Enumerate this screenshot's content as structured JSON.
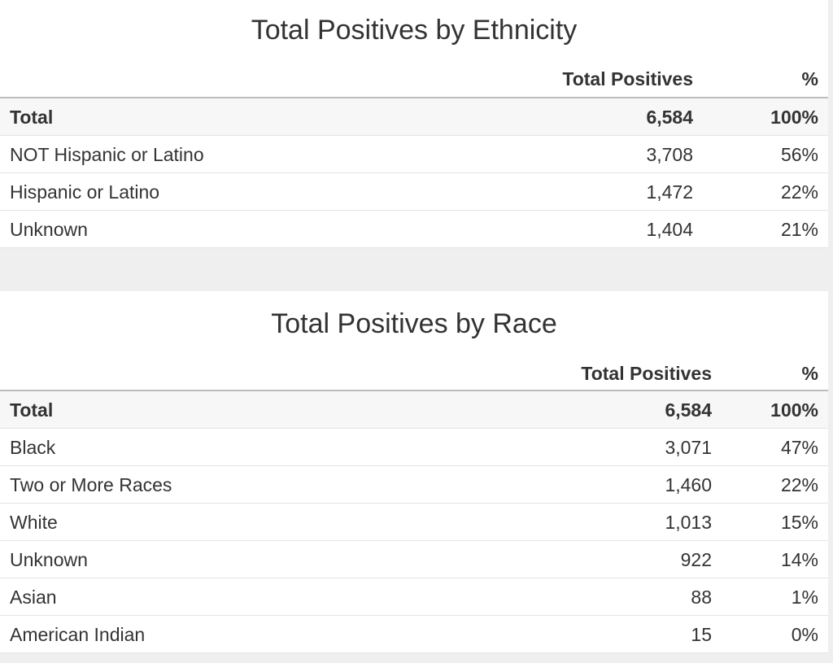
{
  "tables": [
    {
      "title": "Total Positives by Ethnicity",
      "header": [
        "Total Positives",
        "%"
      ],
      "rows": [
        [
          "Total",
          "6,584",
          "100%"
        ],
        [
          "NOT Hispanic or Latino",
          "3,708",
          "56%"
        ],
        [
          "Hispanic or Latino",
          "1,472",
          "22%"
        ],
        [
          "Unknown",
          "1,404",
          "21%"
        ]
      ]
    },
    {
      "title": "Total Positives by Race",
      "header": [
        "Total Positives",
        "%"
      ],
      "rows": [
        [
          "Total",
          "6,584",
          "100%"
        ],
        [
          "Black",
          "3,071",
          "47%"
        ],
        [
          "Two or More Races",
          "1,460",
          "22%"
        ],
        [
          "White",
          "1,013",
          "15%"
        ],
        [
          "Unknown",
          "922",
          "14%"
        ],
        [
          "Asian",
          "88",
          "1%"
        ],
        [
          "American Indian",
          "15",
          "0%"
        ]
      ]
    }
  ]
}
